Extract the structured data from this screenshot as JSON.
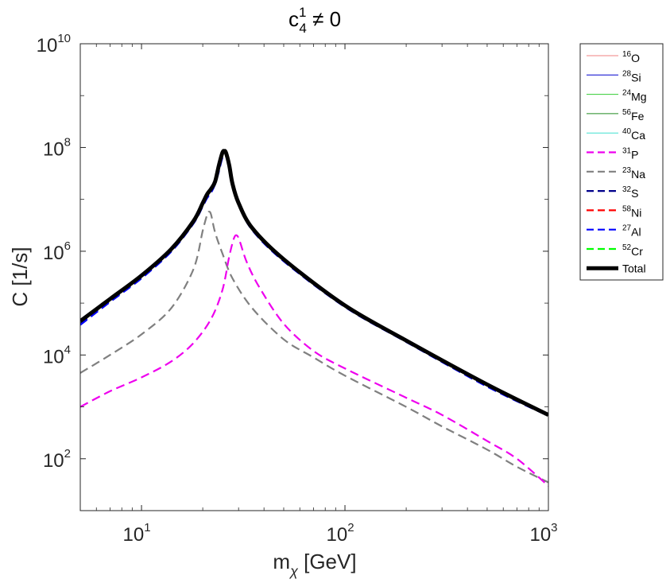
{
  "chart_data": {
    "type": "line",
    "title": {
      "base": "c",
      "sup": "1",
      "sub": "4",
      "rest": " ≠ 0"
    },
    "xlabel": {
      "base": "m",
      "sub": "χ",
      "rest": " [GeV]"
    },
    "ylabel": "C [1/s]",
    "xscale": "log",
    "yscale": "log",
    "xlim": [
      5,
      1000
    ],
    "ylim": [
      10,
      10000000000
    ],
    "xticks": [
      {
        "base": "10",
        "exp": "1",
        "value": 10
      },
      {
        "base": "10",
        "exp": "2",
        "value": 100
      },
      {
        "base": "10",
        "exp": "3",
        "value": 1000
      }
    ],
    "yticks": [
      {
        "base": "10",
        "exp": "2",
        "value": 100
      },
      {
        "base": "10",
        "exp": "4",
        "value": 10000
      },
      {
        "base": "10",
        "exp": "6",
        "value": 1000000
      },
      {
        "base": "10",
        "exp": "8",
        "value": 100000000
      },
      {
        "base": "10",
        "exp": "10",
        "value": 10000000000
      }
    ],
    "legend_position": "outside-right",
    "series": [
      {
        "name": "O",
        "sup": "16",
        "color": "#f08080",
        "style": "solid",
        "width": 1,
        "x": [],
        "y": []
      },
      {
        "name": "Si",
        "sup": "28",
        "color": "#0000cd",
        "style": "solid",
        "width": 1,
        "x": [],
        "y": []
      },
      {
        "name": "Mg",
        "sup": "24",
        "color": "#32cd32",
        "style": "solid",
        "width": 1,
        "x": [],
        "y": []
      },
      {
        "name": "Fe",
        "sup": "56",
        "color": "#228b22",
        "style": "solid",
        "width": 1,
        "x": [],
        "y": []
      },
      {
        "name": "Ca",
        "sup": "40",
        "color": "#40e0d0",
        "style": "solid",
        "width": 1,
        "x": [],
        "y": []
      },
      {
        "name": "P",
        "sup": "31",
        "color": "#ee00ee",
        "style": "dashed",
        "width": 2.2,
        "x": [
          5,
          7,
          10,
          14,
          18,
          22,
          25,
          27,
          28.5,
          29.5,
          30.5,
          33,
          38,
          50,
          70,
          100,
          200,
          300,
          500,
          700,
          1000
        ],
        "y": [
          1000,
          2000,
          3700,
          7500,
          17000,
          50000,
          180000,
          800000,
          1800000,
          2000000,
          1500000,
          600000,
          200000,
          40000,
          12000,
          5500,
          1500,
          700,
          220,
          100,
          30
        ]
      },
      {
        "name": "Na",
        "sup": "23",
        "color": "#808080",
        "style": "dashed",
        "width": 2.2,
        "x": [
          5,
          7,
          10,
          14,
          18,
          20,
          21,
          21.5,
          22,
          23,
          25,
          28,
          35,
          50,
          70,
          100,
          200,
          300,
          500,
          700,
          1000
        ],
        "y": [
          4500,
          10000,
          25000,
          80000,
          450000,
          2500000,
          5000000,
          5800000,
          5000000,
          2300000,
          900000,
          300000,
          80000,
          20000,
          9000,
          4000,
          1000,
          420,
          150,
          70,
          35
        ]
      },
      {
        "name": "S",
        "sup": "32",
        "color": "#00008b",
        "style": "dashed",
        "width": 2.2,
        "x": [
          5,
          7,
          10,
          14,
          18,
          20,
          21,
          22,
          23,
          24,
          25,
          26,
          27,
          28,
          30,
          35,
          50,
          100,
          200,
          500,
          1000
        ],
        "y": [
          40000,
          110000,
          310000,
          1000000,
          3500000,
          7500000,
          11000000,
          14000000,
          20000000,
          35000000,
          65000000,
          70000000,
          40000000,
          18000000,
          8000000,
          2600000,
          650000,
          85000,
          18000,
          2500,
          680
        ]
      },
      {
        "name": "Ni",
        "sup": "58",
        "color": "#ff0000",
        "style": "dashed",
        "width": 2.2,
        "x": [],
        "y": []
      },
      {
        "name": "Al",
        "sup": "27",
        "color": "#0000ff",
        "style": "dashed",
        "width": 2.2,
        "x": [
          5,
          7,
          10,
          14,
          18,
          20,
          21,
          22,
          23,
          24,
          25,
          26,
          27,
          28,
          30,
          35,
          50,
          100,
          200,
          500,
          1000
        ],
        "y": [
          38000,
          105000,
          300000,
          980000,
          3400000,
          7300000,
          10500000,
          13500000,
          19500000,
          34000000,
          63000000,
          68000000,
          39000000,
          17500000,
          7800000,
          2550000,
          640000,
          84000,
          17800,
          2450,
          670
        ]
      },
      {
        "name": "Cr",
        "sup": "52",
        "color": "#00ff00",
        "style": "dashed",
        "width": 2.2,
        "x": [],
        "y": []
      },
      {
        "name": "Total",
        "sup": "",
        "color": "#000000",
        "style": "solid",
        "width": 5,
        "x": [
          5,
          7,
          10,
          14,
          18,
          20,
          21,
          22,
          23,
          24,
          25,
          25.5,
          26,
          27,
          28,
          30,
          35,
          50,
          100,
          200,
          500,
          1000
        ],
        "y": [
          45000,
          120000,
          340000,
          1100000,
          3800000,
          8500000,
          12500000,
          16000000,
          22000000,
          45000000,
          80000000,
          85000000,
          80000000,
          45000000,
          20000000,
          8500000,
          2800000,
          700000,
          90000,
          19000,
          2700,
          700
        ]
      }
    ]
  }
}
